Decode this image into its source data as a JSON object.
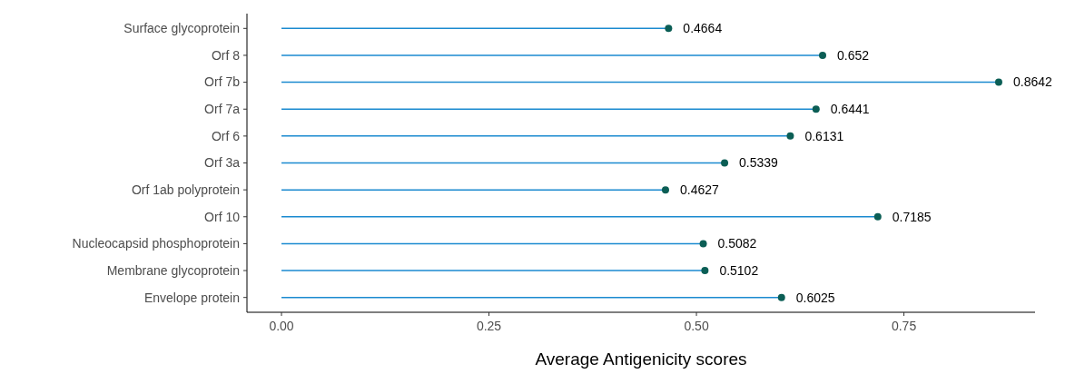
{
  "chart_data": {
    "type": "lollipop",
    "orientation": "horizontal",
    "xlabel": "Average Antigenicity scores",
    "categories": [
      "Surface glycoprotein",
      "Orf 8",
      "Orf 7b",
      "Orf 7a",
      "Orf 6",
      "Orf 3a",
      "Orf 1ab polyprotein",
      "Orf 10",
      "Nucleocapsid phosphoprotein",
      "Membrane glycoprotein",
      "Envelope protein"
    ],
    "color": "#1a8ad0",
    "series": [
      {
        "color": "#0b5e55",
        "values": [
          0.4664,
          0.652,
          0.8642,
          0.6441,
          0.6131,
          0.5339,
          0.4627,
          0.7185,
          0.5082,
          0.5102,
          0.6025
        ]
      }
    ],
    "xlim": [
      -0.0416,
      0.908
    ],
    "xticks": [
      {
        "value": 0,
        "label": "0.00"
      },
      0.25,
      {
        "value": 0.5,
        "label": "0.50"
      },
      0.75
    ],
    "marker": "circle",
    "data_labels": true
  }
}
